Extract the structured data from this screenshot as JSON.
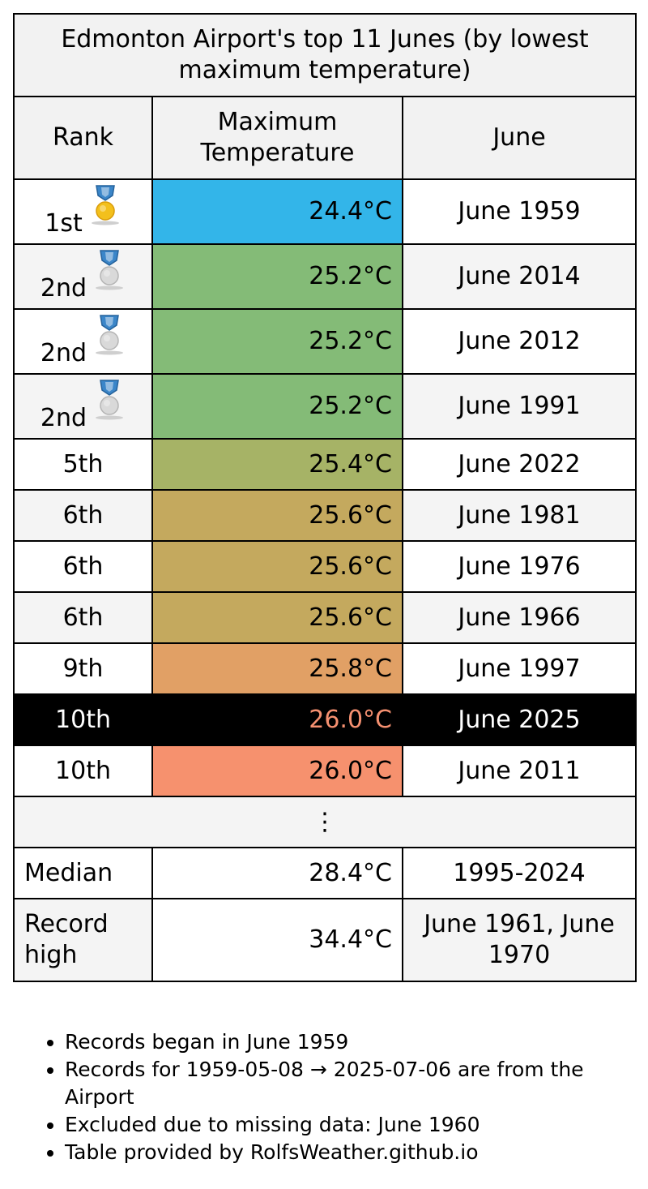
{
  "table": {
    "title": "Edmonton Airport's top 11 Junes (by lowest maximum temperature)",
    "headers": {
      "rank": "Rank",
      "temperature": "Maximum Temperature",
      "june": "June"
    },
    "rows": [
      {
        "rank": "1st",
        "medal": "gold-medal-icon",
        "temperature": "24.4°C",
        "june": "June 1959",
        "color": "#33b5e9"
      },
      {
        "rank": "2nd",
        "medal": "silver-medal-icon",
        "temperature": "25.2°C",
        "june": "June 2014",
        "color": "#84bb77"
      },
      {
        "rank": "2nd",
        "medal": "silver-medal-icon",
        "temperature": "25.2°C",
        "june": "June 2012",
        "color": "#84bb77"
      },
      {
        "rank": "2nd",
        "medal": "silver-medal-icon",
        "temperature": "25.2°C",
        "june": "June 1991",
        "color": "#84bb77"
      },
      {
        "rank": "5th",
        "temperature": "25.4°C",
        "june": "June 2022",
        "color": "#a6b366"
      },
      {
        "rank": "6th",
        "temperature": "25.6°C",
        "june": "June 1981",
        "color": "#c4a95e"
      },
      {
        "rank": "6th",
        "temperature": "25.6°C",
        "june": "June 1976",
        "color": "#c4a95e"
      },
      {
        "rank": "6th",
        "temperature": "25.6°C",
        "june": "June 1966",
        "color": "#c4a95e"
      },
      {
        "rank": "9th",
        "temperature": "25.8°C",
        "june": "June 1997",
        "color": "#e1a065"
      },
      {
        "rank": "10th",
        "temperature": "26.0°C",
        "june": "June 2025",
        "color": "#000000",
        "text_color": "#f59070",
        "current": true
      },
      {
        "rank": "10th",
        "temperature": "26.0°C",
        "june": "June 2011",
        "color": "#f6916e"
      }
    ],
    "ellipsis": "⋮",
    "median": {
      "label": "Median",
      "temperature": "28.4°C",
      "period": "1995-2024"
    },
    "record_high": {
      "label": "Record high",
      "temperature": "34.4°C",
      "dates": "June 1961, June 1970"
    }
  },
  "notes": [
    "Records began in June 1959",
    "Records for 1959-05-08 → 2025-07-06 are from the Airport",
    "Excluded due to missing data: June 1960",
    "Table provided by RolfsWeather.github.io"
  ]
}
